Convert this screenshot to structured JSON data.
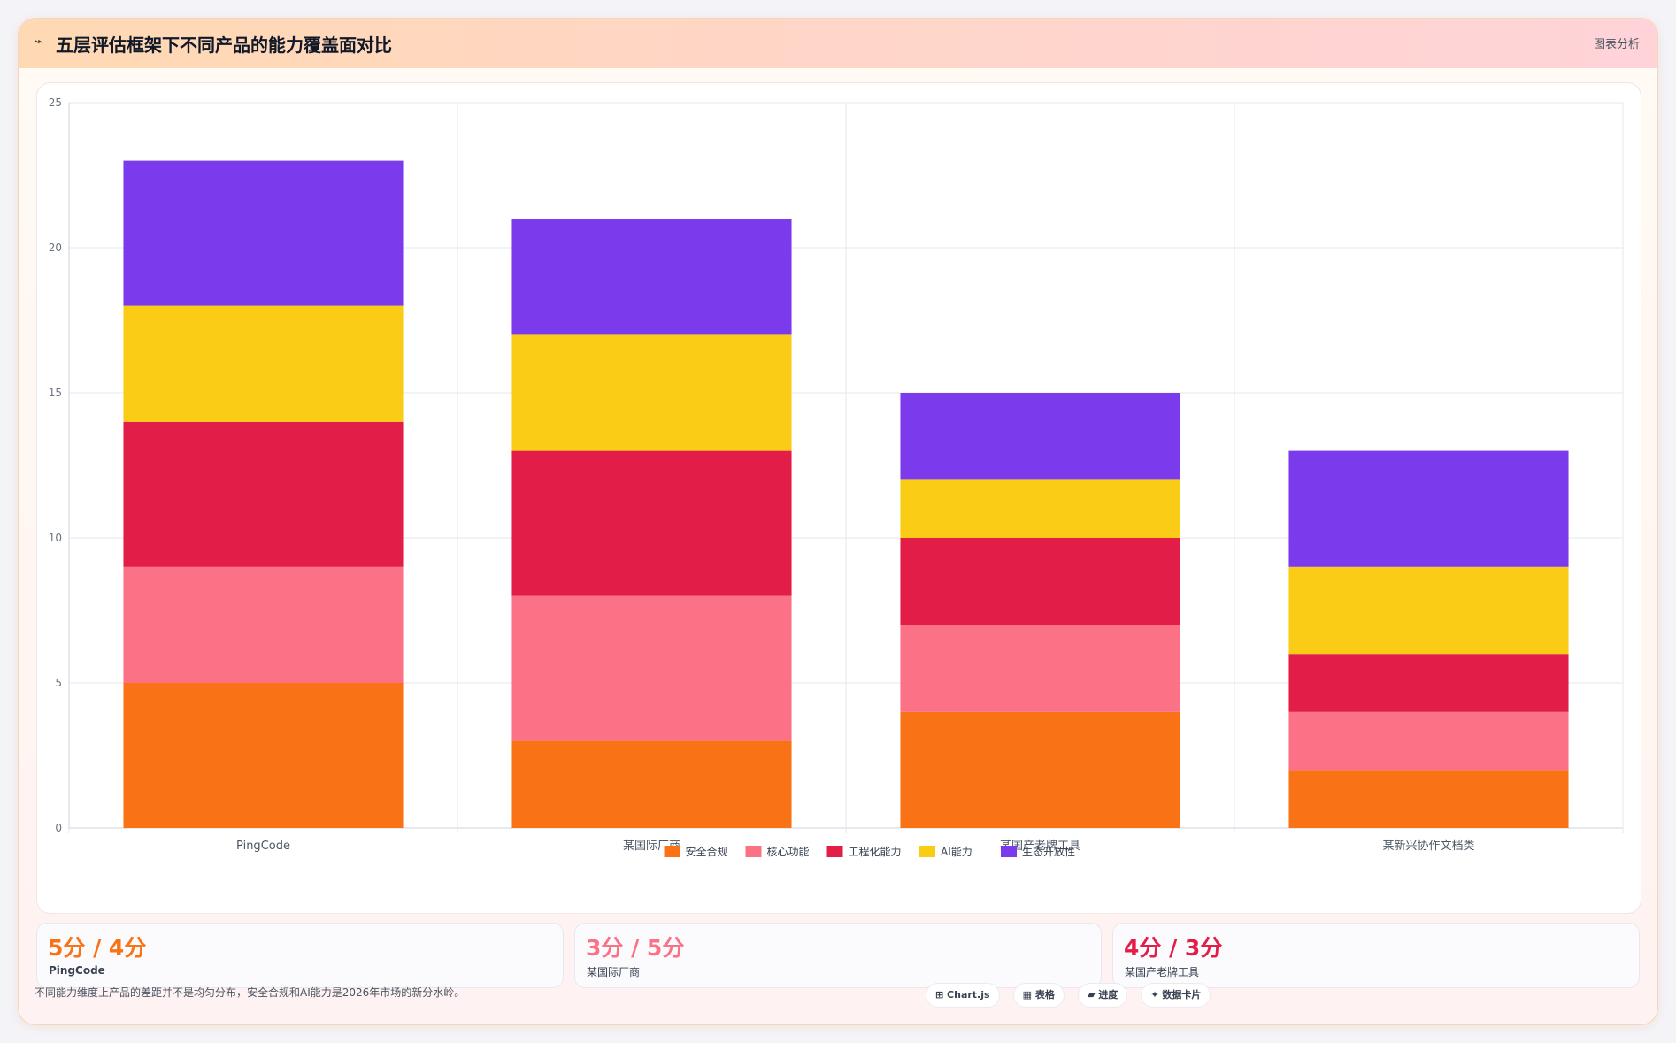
{
  "header": {
    "icon": "⌁",
    "title": "五层评估框架下不同产品的能力覆盖面对比",
    "tag": "图表分析"
  },
  "chart_data": {
    "type": "bar",
    "stacked": true,
    "categories": [
      "PingCode",
      "某国际厂商",
      "某国产老牌工具",
      "某新兴协作文档类"
    ],
    "series": [
      {
        "name": "安全合规",
        "color": "#f97316",
        "values": [
          5,
          3,
          4,
          2
        ]
      },
      {
        "name": "核心功能",
        "color": "#fb7185",
        "values": [
          4,
          5,
          3,
          2
        ]
      },
      {
        "name": "工程化能力",
        "color": "#e11d48",
        "values": [
          5,
          5,
          3,
          2
        ]
      },
      {
        "name": "AI能力",
        "color": "#facc15",
        "values": [
          4,
          4,
          2,
          3
        ]
      },
      {
        "name": "生态开放性",
        "color": "#7c3aed",
        "values": [
          5,
          4,
          3,
          4
        ]
      }
    ],
    "ylim": [
      0,
      25
    ],
    "yticks": [
      0,
      5,
      10,
      15,
      20,
      25
    ],
    "grid": true,
    "legend_position": "bottom"
  },
  "stats": [
    {
      "value": "5分 / 4分",
      "label": "PingCode",
      "color": "#f97316"
    },
    {
      "value": "3分 / 5分",
      "label": "某国际厂商",
      "color": "#fb7185"
    },
    {
      "value": "4分 / 3分",
      "label": "某国产老牌工具",
      "color": "#e11d48"
    }
  ],
  "footer": {
    "note": "不同能力维度上产品的差距并不是均匀分布，安全合规和AI能力是2026年市场的新分水岭。",
    "chips": [
      "⊞ Chart.js",
      "▦ 表格",
      "▰ 进度",
      "✦ 数据卡片"
    ]
  }
}
